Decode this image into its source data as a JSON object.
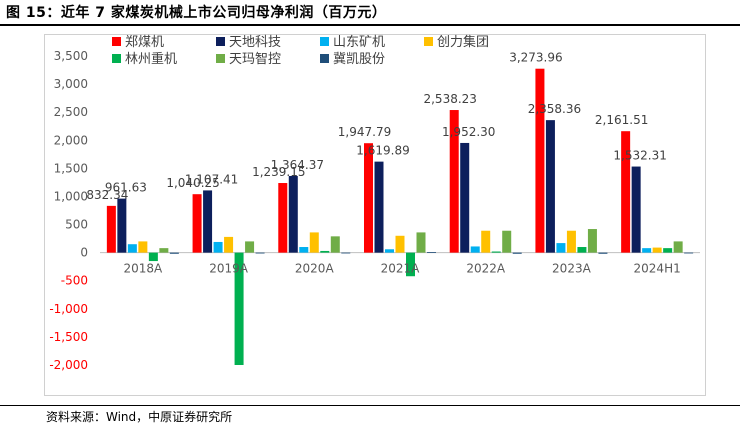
{
  "figure_title": "图 15：近年 7 家煤炭机械上市公司归母净利润（百万元）",
  "source": "资料来源：Wind，中原证券研究所",
  "chart_data": {
    "type": "bar",
    "title": "",
    "xlabel": "",
    "ylabel": "",
    "categories": [
      "2018A",
      "2019A",
      "2020A",
      "2021A",
      "2022A",
      "2023A",
      "2024H1"
    ],
    "ylim": [
      -2000,
      3500
    ],
    "yticks": [
      3500,
      3000,
      2500,
      2000,
      1500,
      1000,
      500,
      0,
      -500,
      -1000,
      -1500,
      -2000
    ],
    "ytick_labels": [
      "3,500",
      "3,000",
      "2,500",
      "2,000",
      "1,500",
      "1,000",
      "500",
      "0",
      "-500",
      "-1,000",
      "-1,500",
      "-2,000"
    ],
    "negative_tick_color": "#ff0000",
    "grid": false,
    "legend_position": "top-left",
    "series": [
      {
        "name": "郑煤机",
        "color": "#ff0000",
        "values": [
          832.34,
          1040.25,
          1239.15,
          1947.79,
          2538.23,
          3273.96,
          2161.51
        ],
        "labels": [
          "832.34",
          "1,040.25",
          "1,239.15",
          "1,947.79",
          "2,538.23",
          "3,273.96",
          "2,161.51"
        ]
      },
      {
        "name": "天地科技",
        "color": "#0d1f5c",
        "values": [
          961.63,
          1107.41,
          1364.37,
          1619.89,
          1952.3,
          2358.36,
          1532.31
        ],
        "labels": [
          "961.63",
          "1,107.41",
          "1,364.37",
          "1,619.89",
          "1,952.30",
          "2,358.36",
          "1,532.31"
        ]
      },
      {
        "name": "山东矿机",
        "color": "#00b0f0",
        "values": [
          150,
          190,
          100,
          60,
          110,
          170,
          80
        ]
      },
      {
        "name": "创力集团",
        "color": "#ffc000",
        "values": [
          200,
          280,
          360,
          300,
          390,
          390,
          90
        ]
      },
      {
        "name": "林州重机",
        "color": "#00b050",
        "values": [
          -150,
          -2000,
          30,
          -420,
          20,
          100,
          80
        ]
      },
      {
        "name": "天玛智控",
        "color": "#70ad47",
        "values": [
          80,
          200,
          290,
          360,
          390,
          420,
          200
        ]
      },
      {
        "name": "冀凯股份",
        "color": "#1f4e79",
        "values": [
          -20,
          -15,
          -10,
          10,
          -20,
          -20,
          -10
        ]
      }
    ]
  }
}
